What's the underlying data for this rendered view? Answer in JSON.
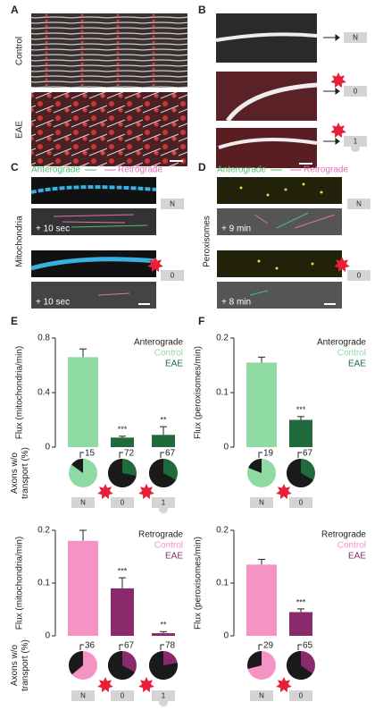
{
  "figure": {
    "A": {
      "label": "A",
      "rows": [
        "Control",
        "EAE"
      ]
    },
    "B": {
      "label": "B",
      "stages": [
        "N",
        "0",
        "1"
      ]
    },
    "C": {
      "label": "C",
      "legend": [
        "Anterograde",
        "Retrograde"
      ],
      "side": "Mitochondria",
      "times": [
        "+ 10 sec",
        "+ 10 sec"
      ],
      "stages": [
        "N",
        "0"
      ]
    },
    "D": {
      "label": "D",
      "legend": [
        "Anterograde",
        "Retrograde"
      ],
      "side": "Peroxisomes",
      "times": [
        "+ 9 min",
        "+ 8 min"
      ],
      "stages": [
        "N",
        "0"
      ]
    },
    "E": {
      "label": "E"
    },
    "F": {
      "label": "F"
    }
  },
  "chart_data": [
    {
      "type": "bar",
      "title": "Anterograde",
      "y_label": "Flux (mitochondria/min)",
      "ylim": [
        0,
        0.8
      ],
      "yticks": [
        0,
        0.4,
        0.8
      ],
      "categories": [
        "N",
        "0",
        "1"
      ],
      "series": [
        {
          "name": "Control",
          "color": "#8fd9a3",
          "values": [
            0.66,
            null,
            null
          ],
          "errors": [
            0.06,
            null,
            null
          ]
        },
        {
          "name": "EAE",
          "color": "#1f6b3c",
          "values": [
            null,
            0.07,
            0.09
          ],
          "errors": [
            null,
            0.01,
            0.06
          ]
        }
      ],
      "annotations": [
        null,
        "***",
        "**"
      ],
      "pie": {
        "label": "Axons w/o transport (%)",
        "values": [
          15,
          72,
          67
        ]
      }
    },
    {
      "type": "bar",
      "title": "Retrograde",
      "y_label": "Flux (mitochondria/min)",
      "ylim": [
        0,
        0.2
      ],
      "yticks": [
        0,
        0.1,
        0.2
      ],
      "categories": [
        "N",
        "0",
        "1"
      ],
      "series": [
        {
          "name": "Control",
          "color": "#f593c4",
          "values": [
            0.18,
            null,
            null
          ],
          "errors": [
            0.02,
            null,
            null
          ]
        },
        {
          "name": "EAE",
          "color": "#8a2a6d",
          "values": [
            null,
            0.09,
            0.005
          ],
          "errors": [
            null,
            0.02,
            0.003
          ]
        }
      ],
      "annotations": [
        null,
        "***",
        "**"
      ],
      "pie": {
        "label": "Axons w/o transport (%)",
        "values": [
          36,
          67,
          78
        ]
      }
    },
    {
      "type": "bar",
      "title": "Anterograde",
      "y_label": "Flux (peroxisomes/min)",
      "ylim": [
        0,
        0.2
      ],
      "yticks": [
        0,
        0.1,
        0.2
      ],
      "categories": [
        "N",
        "0"
      ],
      "series": [
        {
          "name": "Control",
          "color": "#8fd9a3",
          "values": [
            0.155,
            null
          ],
          "errors": [
            0.01,
            null
          ]
        },
        {
          "name": "EAE",
          "color": "#1f6b3c",
          "values": [
            null,
            0.05
          ],
          "errors": [
            null,
            0.006
          ]
        }
      ],
      "annotations": [
        null,
        "***"
      ],
      "pie": {
        "values": [
          19,
          67
        ]
      }
    },
    {
      "type": "bar",
      "title": "Retrograde",
      "y_label": "Flux (peroxisomes/min)",
      "ylim": [
        0,
        0.2
      ],
      "yticks": [
        0,
        0.1,
        0.2
      ],
      "categories": [
        "N",
        "0"
      ],
      "series": [
        {
          "name": "Control",
          "color": "#f593c4",
          "values": [
            0.135,
            null
          ],
          "errors": [
            0.01,
            null
          ]
        },
        {
          "name": "EAE",
          "color": "#8a2a6d",
          "values": [
            null,
            0.045
          ],
          "errors": [
            null,
            0.006
          ]
        }
      ],
      "annotations": [
        null,
        "***"
      ],
      "pie": {
        "values": [
          29,
          65
        ]
      }
    }
  ]
}
